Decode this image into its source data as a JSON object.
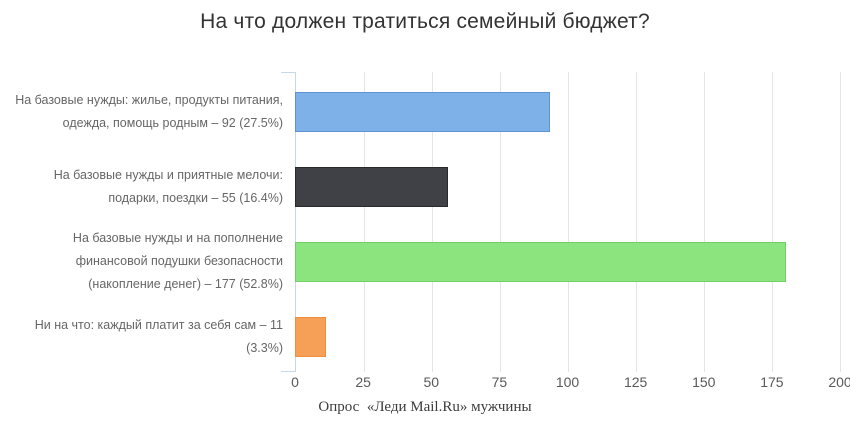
{
  "title": "На что должен тратиться семейный бюджет?",
  "caption": "Опрос  «Леди Mail.Ru» мужчины",
  "colors": {
    "background": "#ffffff",
    "title_text": "#333333",
    "category_label_text": "#666666",
    "tick_label_text": "#595959",
    "caption_text": "#3c3c3c",
    "gridline": "#e4e4e4",
    "y_axis_line": "#c6d6eb"
  },
  "chart_data": {
    "type": "bar",
    "orientation": "horizontal",
    "title": "На что должен тратиться семейный бюджет?",
    "caption": "Опрос  «Леди Mail.Ru» мужчины",
    "categories": [
      "На базовые нужды: жилье, продукты питания, одежда, помощь родным – 92 (27.5%)",
      "На базовые нужды и приятные мелочи: подарки, поездки – 55 (16.4%)",
      "На базовые нужды и на пополнение финансовой подушки безопасности (накопление денег) – 177 (52.8%)",
      "Ни на что: каждый платит за себя сам – 11 (3.3%)"
    ],
    "label_lines": [
      [
        "На базовые нужды: жилье, продукты питания,",
        "одежда, помощь родным – 92 (27.5%)"
      ],
      [
        "На базовые нужды и приятные мелочи:",
        "подарки, поездки – 55 (16.4%)"
      ],
      [
        "На базовые нужды и на пополнение",
        "финансовой подушки безопасности",
        "(накопление денег) – 177 (52.8%)"
      ],
      [
        "Ни на что: каждый платит за себя сам – 11",
        "(3.3%)"
      ]
    ],
    "values": [
      92,
      55,
      177,
      11
    ],
    "percentages": [
      27.5,
      16.4,
      52.8,
      3.3
    ],
    "bar_colors": [
      "#7db1e8",
      "#3f4146",
      "#8ce47f",
      "#f6a057"
    ],
    "bar_border_colors": [
      "#5d94d4",
      "#27292c",
      "#72cf66",
      "#ef8e3c"
    ],
    "xlabel": "",
    "ylabel": "",
    "xlim": [
      0,
      200
    ],
    "xticks": [
      0,
      25,
      50,
      75,
      100,
      125,
      150,
      175,
      200
    ],
    "grid": true,
    "legend": false
  }
}
